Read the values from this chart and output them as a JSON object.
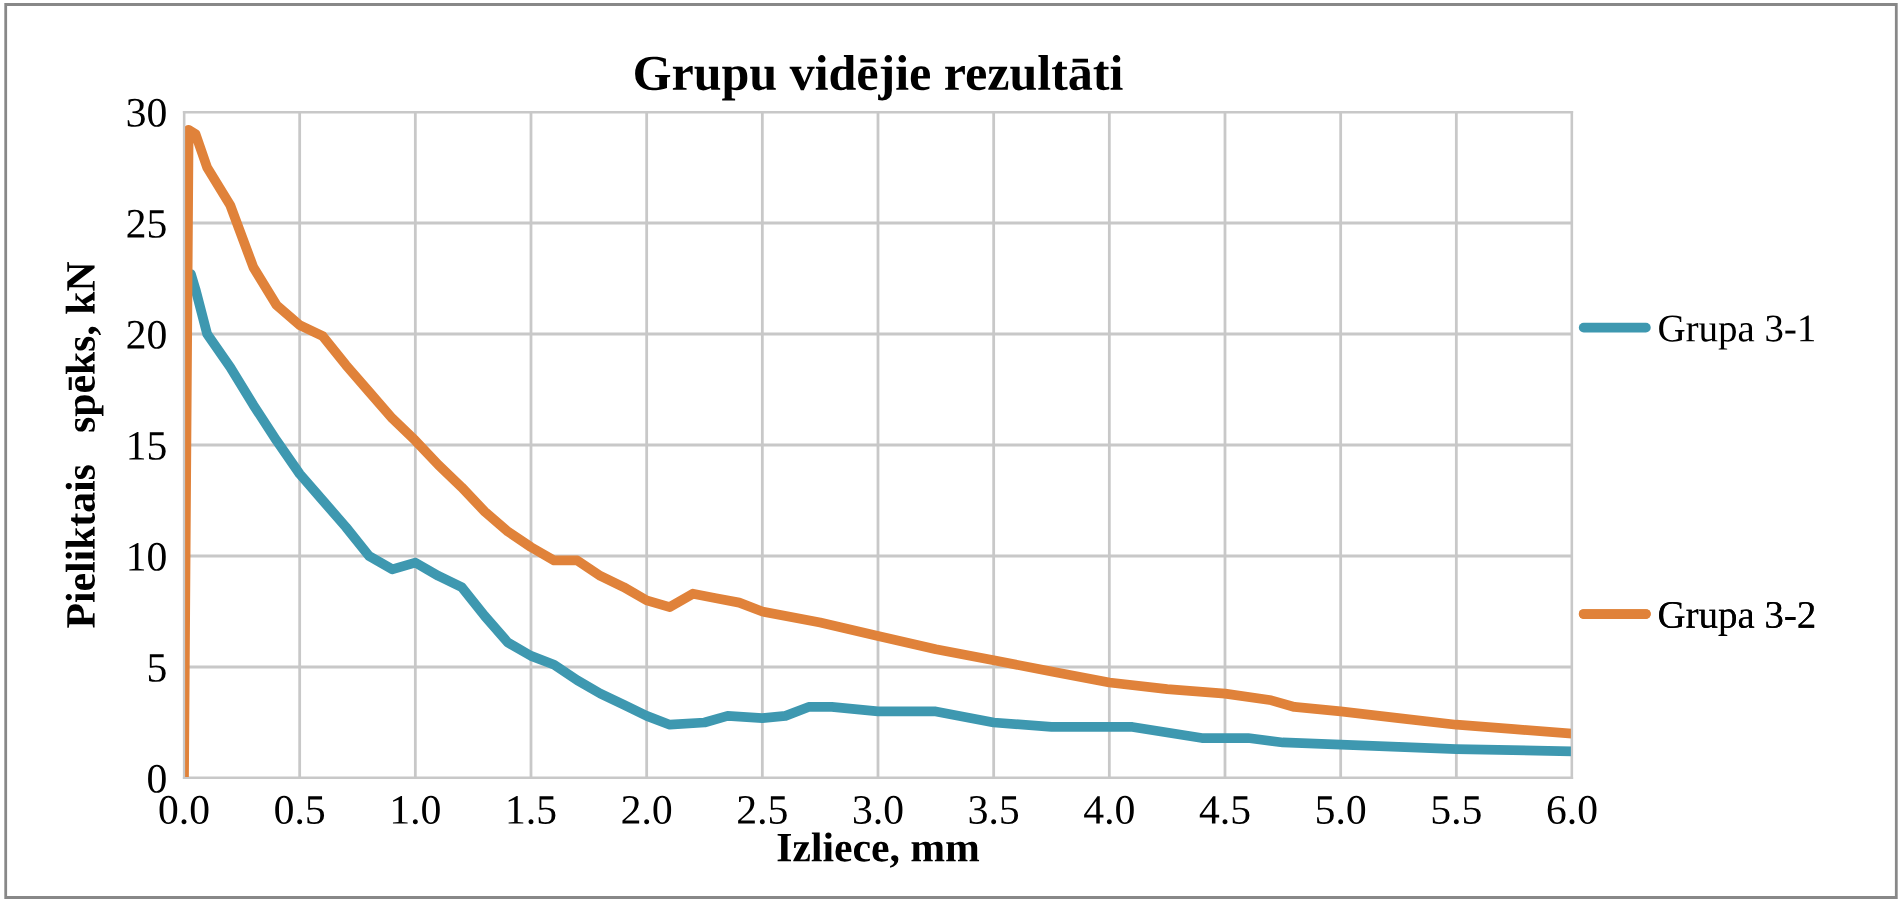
{
  "chart_data": {
    "type": "line",
    "title": "Grupu vidējie rezultāti",
    "xlabel": "Izliece, mm",
    "ylabel": "Pieliktais   spēks, kN",
    "xlim": [
      0,
      6
    ],
    "xticks": [
      {
        "value": 0,
        "label": "0.0"
      },
      {
        "value": 0.5,
        "label": "0.5"
      },
      {
        "value": 1,
        "label": "1.0"
      },
      {
        "value": 1.5,
        "label": "1.5"
      },
      {
        "value": 2,
        "label": "2.0"
      },
      {
        "value": 2.5,
        "label": "2.5"
      },
      {
        "value": 3,
        "label": "3.0"
      },
      {
        "value": 3.5,
        "label": "3.5"
      },
      {
        "value": 4,
        "label": "4.0"
      },
      {
        "value": 4.5,
        "label": "4.5"
      },
      {
        "value": 5,
        "label": "5.0"
      },
      {
        "value": 5.5,
        "label": "5.5"
      },
      {
        "value": 6,
        "label": "6.0"
      }
    ],
    "ylim": [
      0,
      30
    ],
    "yticks": [
      0,
      5,
      10,
      15,
      20,
      25,
      30
    ],
    "grid": true,
    "legend": "right",
    "marker": "none",
    "line_style": "solid",
    "series": [
      {
        "name": "Grupa 3-1",
        "color": "#3e98b0",
        "x": [
          0.03,
          0.05,
          0.1,
          0.2,
          0.3,
          0.4,
          0.5,
          0.6,
          0.7,
          0.8,
          0.9,
          1.0,
          1.1,
          1.2,
          1.3,
          1.4,
          1.5,
          1.6,
          1.7,
          1.8,
          1.9,
          2.0,
          2.1,
          2.25,
          2.35,
          2.5,
          2.6,
          2.7,
          2.8,
          3.0,
          3.25,
          3.5,
          3.75,
          4.0,
          4.1,
          4.4,
          4.6,
          4.75,
          5.0,
          5.25,
          5.5,
          6.0
        ],
        "values": [
          22.7,
          22.0,
          20.0,
          18.5,
          16.8,
          15.2,
          13.7,
          12.5,
          11.3,
          10.0,
          9.4,
          9.7,
          9.1,
          8.6,
          7.3,
          6.1,
          5.5,
          5.1,
          4.4,
          3.8,
          3.3,
          2.8,
          2.4,
          2.5,
          2.8,
          2.7,
          2.8,
          3.2,
          3.2,
          3.0,
          3.0,
          2.5,
          2.3,
          2.3,
          2.3,
          1.8,
          1.8,
          1.6,
          1.5,
          1.4,
          1.3,
          1.2
        ]
      },
      {
        "name": "Grupa 3-2",
        "color": "#e0823a",
        "x": [
          0,
          0.02,
          0.05,
          0.1,
          0.2,
          0.3,
          0.4,
          0.5,
          0.6,
          0.7,
          0.8,
          0.9,
          1.0,
          1.1,
          1.2,
          1.3,
          1.4,
          1.5,
          1.6,
          1.7,
          1.8,
          1.9,
          2.0,
          2.1,
          2.2,
          2.3,
          2.4,
          2.5,
          2.75,
          3.0,
          3.25,
          3.5,
          3.75,
          4.0,
          4.25,
          4.5,
          4.7,
          4.8,
          5.0,
          5.25,
          5.5,
          5.75,
          6.0
        ],
        "values": [
          0,
          29.2,
          29.0,
          27.5,
          25.8,
          23.0,
          21.3,
          20.4,
          19.9,
          18.6,
          17.4,
          16.2,
          15.2,
          14.1,
          13.1,
          12.0,
          11.1,
          10.4,
          9.8,
          9.8,
          9.1,
          8.6,
          8.0,
          7.7,
          8.3,
          8.1,
          7.9,
          7.5,
          7.0,
          6.4,
          5.8,
          5.3,
          4.8,
          4.3,
          4.0,
          3.8,
          3.5,
          3.2,
          3.0,
          2.7,
          2.4,
          2.2,
          2.0
        ]
      }
    ]
  }
}
